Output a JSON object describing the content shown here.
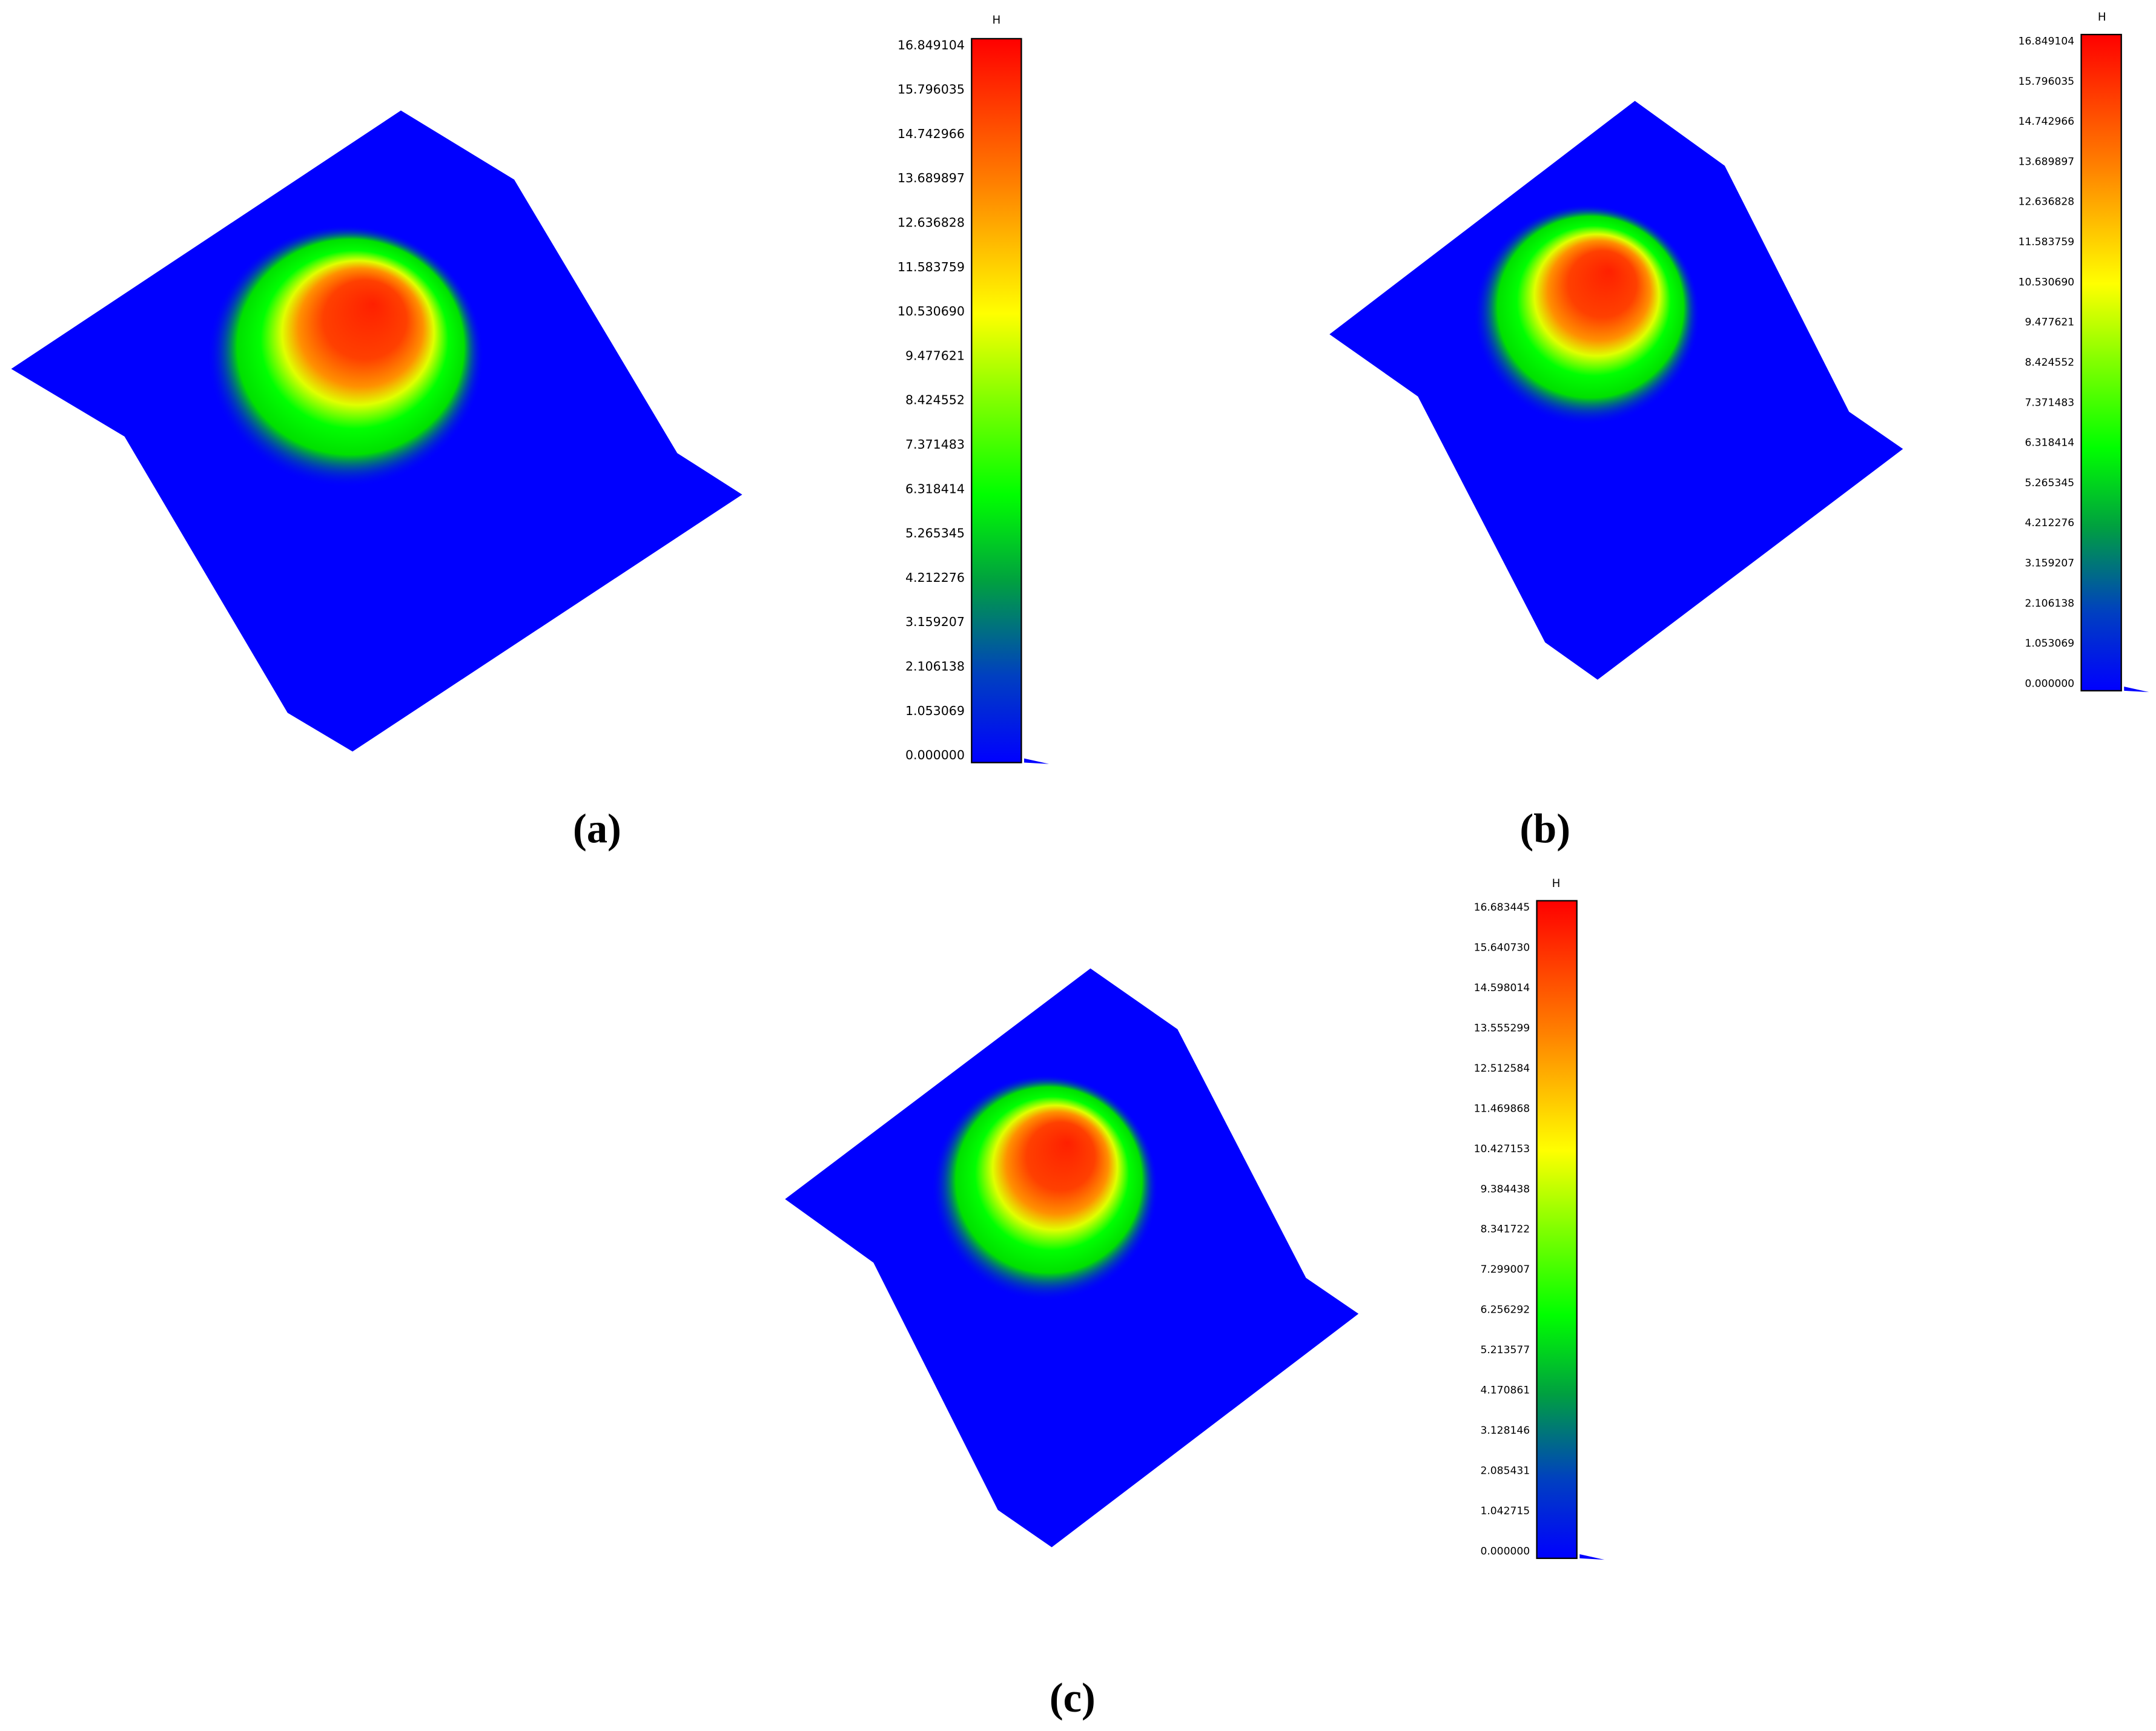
{
  "panels": [
    {
      "label": "(a)",
      "colorbar": {
        "title": "H",
        "ticks": [
          "16.849104",
          "15.796035",
          "14.742966",
          "13.689897",
          "12.636828",
          "11.583759",
          "10.530690",
          "9.477621",
          "8.424552",
          "7.371483",
          "6.318414",
          "5.265345",
          "4.212276",
          "3.159207",
          "2.106138",
          "1.053069",
          "0.000000"
        ]
      }
    },
    {
      "label": "(b)",
      "colorbar": {
        "title": "H",
        "ticks": [
          "16.849104",
          "15.796035",
          "14.742966",
          "13.689897",
          "12.636828",
          "11.583759",
          "10.530690",
          "9.477621",
          "8.424552",
          "7.371483",
          "6.318414",
          "5.265345",
          "4.212276",
          "3.159207",
          "2.106138",
          "1.053069",
          "0.000000"
        ]
      }
    },
    {
      "label": "(c)",
      "colorbar": {
        "title": "H",
        "ticks": [
          "16.683445",
          "15.640730",
          "14.598014",
          "13.555299",
          "12.512584",
          "11.469868",
          "10.427153",
          "9.384438",
          "8.341722",
          "7.299007",
          "6.256292",
          "5.213577",
          "4.170861",
          "3.128146",
          "2.085431",
          "1.042715",
          "0.000000"
        ]
      }
    }
  ]
}
